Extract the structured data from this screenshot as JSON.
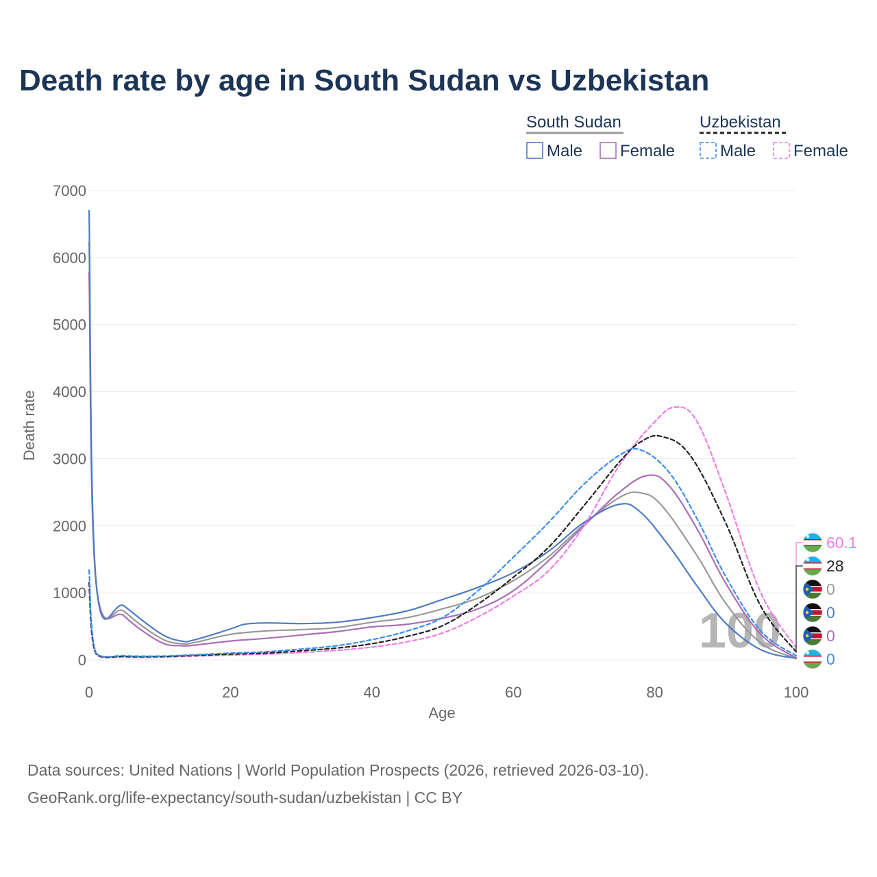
{
  "chart_data": {
    "type": "line",
    "title": "Death rate by age in South Sudan vs Uzbekistan",
    "xlabel": "Age",
    "ylabel": "Death rate",
    "xlim": [
      0,
      100
    ],
    "ylim": [
      0,
      7000
    ],
    "x_ticks": [
      "0",
      "20",
      "40",
      "60",
      "80",
      "100"
    ],
    "y_ticks": [
      "0",
      "1000",
      "2000",
      "3000",
      "4000",
      "5000",
      "6000",
      "7000"
    ],
    "frame_label": "100",
    "legend": {
      "groups": [
        {
          "title": "South Sudan",
          "color": "#999999",
          "dash": false,
          "items": [
            {
              "label": "Male",
              "color": "#4f7cc2"
            },
            {
              "label": "Female",
              "color": "#a86fb5"
            }
          ]
        },
        {
          "title": "Uzbekistan",
          "color": "#222222",
          "dash": true,
          "items": [
            {
              "label": "Male",
              "color": "#3b8de8"
            },
            {
              "label": "Female",
              "color": "#f07be8"
            }
          ]
        }
      ]
    },
    "series": [
      {
        "name": "South Sudan Male",
        "color": "#4f7cc2",
        "dash": false,
        "end_label": "0",
        "points": [
          [
            0,
            6700
          ],
          [
            1,
            1150
          ],
          [
            5,
            800
          ],
          [
            10,
            400
          ],
          [
            13,
            280
          ],
          [
            15,
            300
          ],
          [
            20,
            460
          ],
          [
            22,
            530
          ],
          [
            25,
            550
          ],
          [
            30,
            540
          ],
          [
            35,
            560
          ],
          [
            40,
            630
          ],
          [
            45,
            730
          ],
          [
            50,
            900
          ],
          [
            55,
            1080
          ],
          [
            60,
            1300
          ],
          [
            65,
            1620
          ],
          [
            70,
            2050
          ],
          [
            75,
            2320
          ],
          [
            78,
            2200
          ],
          [
            82,
            1700
          ],
          [
            86,
            1100
          ],
          [
            90,
            550
          ],
          [
            95,
            150
          ],
          [
            100,
            20
          ]
        ]
      },
      {
        "name": "South Sudan Female",
        "color": "#a86fb5",
        "dash": false,
        "end_label": "0",
        "points": [
          [
            0,
            5780
          ],
          [
            1,
            1150
          ],
          [
            5,
            650
          ],
          [
            10,
            270
          ],
          [
            13,
            210
          ],
          [
            15,
            220
          ],
          [
            20,
            280
          ],
          [
            25,
            320
          ],
          [
            30,
            370
          ],
          [
            35,
            420
          ],
          [
            40,
            490
          ],
          [
            45,
            530
          ],
          [
            50,
            620
          ],
          [
            55,
            760
          ],
          [
            60,
            1030
          ],
          [
            65,
            1480
          ],
          [
            70,
            2000
          ],
          [
            75,
            2500
          ],
          [
            79,
            2750
          ],
          [
            82,
            2600
          ],
          [
            86,
            1950
          ],
          [
            90,
            1150
          ],
          [
            95,
            380
          ],
          [
            100,
            30
          ]
        ]
      },
      {
        "name": "South Sudan Total",
        "color": "#999999",
        "dash": false,
        "end_label": "0",
        "points": [
          [
            0,
            6230
          ],
          [
            1,
            1150
          ],
          [
            5,
            720
          ],
          [
            10,
            330
          ],
          [
            13,
            240
          ],
          [
            15,
            260
          ],
          [
            20,
            380
          ],
          [
            25,
            430
          ],
          [
            30,
            450
          ],
          [
            35,
            480
          ],
          [
            40,
            560
          ],
          [
            45,
            630
          ],
          [
            50,
            760
          ],
          [
            55,
            920
          ],
          [
            60,
            1180
          ],
          [
            65,
            1540
          ],
          [
            70,
            2020
          ],
          [
            75,
            2420
          ],
          [
            78,
            2490
          ],
          [
            81,
            2300
          ],
          [
            86,
            1550
          ],
          [
            90,
            850
          ],
          [
            95,
            250
          ],
          [
            100,
            25
          ]
        ]
      },
      {
        "name": "Uzbekistan Male",
        "color": "#3b8de8",
        "dash": true,
        "end_label": "0",
        "points": [
          [
            0,
            1340
          ],
          [
            1,
            100
          ],
          [
            5,
            60
          ],
          [
            10,
            55
          ],
          [
            15,
            75
          ],
          [
            20,
            100
          ],
          [
            25,
            120
          ],
          [
            30,
            160
          ],
          [
            35,
            210
          ],
          [
            40,
            300
          ],
          [
            45,
            430
          ],
          [
            50,
            630
          ],
          [
            55,
            1030
          ],
          [
            60,
            1530
          ],
          [
            65,
            2050
          ],
          [
            70,
            2620
          ],
          [
            75,
            3050
          ],
          [
            78,
            3130
          ],
          [
            82,
            2800
          ],
          [
            86,
            2100
          ],
          [
            90,
            1250
          ],
          [
            95,
            430
          ],
          [
            100,
            60
          ]
        ]
      },
      {
        "name": "Uzbekistan Female",
        "color": "#f07be8",
        "dash": true,
        "end_label": "60.1",
        "points": [
          [
            0,
            1050
          ],
          [
            1,
            80
          ],
          [
            5,
            40
          ],
          [
            10,
            40
          ],
          [
            15,
            55
          ],
          [
            20,
            70
          ],
          [
            25,
            85
          ],
          [
            30,
            110
          ],
          [
            35,
            140
          ],
          [
            40,
            190
          ],
          [
            45,
            270
          ],
          [
            50,
            400
          ],
          [
            55,
            640
          ],
          [
            60,
            950
          ],
          [
            65,
            1330
          ],
          [
            70,
            2000
          ],
          [
            75,
            2900
          ],
          [
            80,
            3550
          ],
          [
            83,
            3770
          ],
          [
            86,
            3550
          ],
          [
            90,
            2500
          ],
          [
            95,
            1000
          ],
          [
            100,
            180
          ]
        ]
      },
      {
        "name": "Uzbekistan Total",
        "color": "#222222",
        "dash": true,
        "end_label": "28",
        "points": [
          [
            0,
            1150
          ],
          [
            1,
            90
          ],
          [
            5,
            50
          ],
          [
            10,
            48
          ],
          [
            15,
            65
          ],
          [
            20,
            85
          ],
          [
            25,
            100
          ],
          [
            30,
            135
          ],
          [
            35,
            175
          ],
          [
            40,
            240
          ],
          [
            45,
            350
          ],
          [
            50,
            510
          ],
          [
            55,
            830
          ],
          [
            60,
            1230
          ],
          [
            65,
            1680
          ],
          [
            70,
            2300
          ],
          [
            75,
            2950
          ],
          [
            78,
            3250
          ],
          [
            81,
            3330
          ],
          [
            85,
            3050
          ],
          [
            90,
            2050
          ],
          [
            95,
            800
          ],
          [
            100,
            120
          ]
        ]
      }
    ],
    "flag_badges": [
      {
        "country": "Uzbekistan",
        "value_label": "60.1",
        "color": "#f07be8"
      },
      {
        "country": "Uzbekistan",
        "value_label": "28",
        "color": "#222222"
      },
      {
        "country": "South Sudan",
        "value_label": "0",
        "color": "#999999"
      },
      {
        "country": "South Sudan",
        "value_label": "0",
        "color": "#4f7cc2"
      },
      {
        "country": "South Sudan",
        "value_label": "0",
        "color": "#a86fb5"
      },
      {
        "country": "Uzbekistan",
        "value_label": "0",
        "color": "#3b8de8"
      }
    ]
  },
  "source": {
    "line1": "Data sources: United Nations | World Population Prospects (2026, retrieved 2026-03-10).",
    "line2": "GeoRank.org/life-expectancy/south-sudan/uzbekistan | CC BY"
  }
}
